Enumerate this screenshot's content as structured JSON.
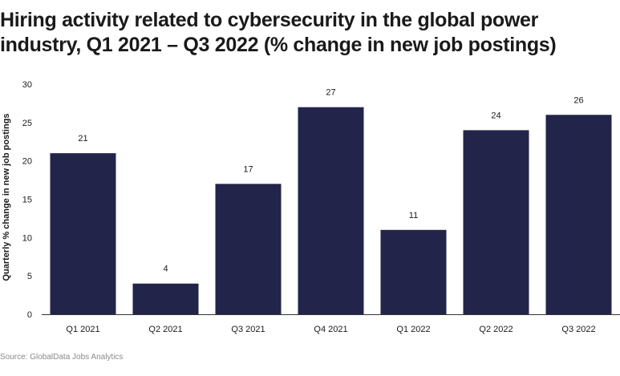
{
  "title_lines": [
    "Hiring activity related to cybersecurity in the global power",
    "industry, Q1 2021 – Q3 2022 (% change in new job postings)"
  ],
  "source": "Source: GlobalData Jobs Analytics",
  "colors": {
    "bar": "#22244a",
    "axis": "#333333",
    "text": "#1a1a1a",
    "source": "#8a8a8a",
    "background": "#ffffff"
  },
  "chart_data": {
    "type": "bar",
    "title": "Hiring activity related to cybersecurity in the global power industry, Q1 2021 – Q3 2022 (% change in new job postings)",
    "xlabel": "",
    "ylabel": "Quarterly % change in new job postings",
    "categories": [
      "Q1 2021",
      "Q2 2021",
      "Q3 2021",
      "Q4 2021",
      "Q1 2022",
      "Q2 2022",
      "Q3 2022"
    ],
    "values": [
      21,
      4,
      17,
      27,
      11,
      24,
      26
    ],
    "data_labels": [
      "21",
      "4",
      "17",
      "27",
      "11",
      "24",
      "26"
    ],
    "ylim": [
      0,
      30
    ],
    "yticks": [
      0,
      5,
      10,
      15,
      20,
      25,
      30
    ],
    "grid": false,
    "legend": "none"
  }
}
